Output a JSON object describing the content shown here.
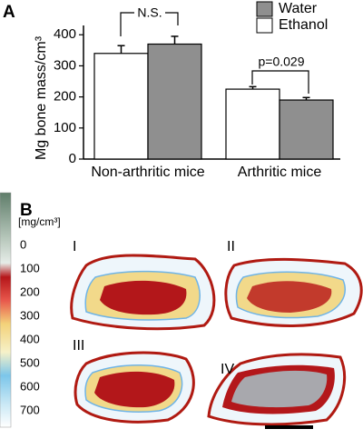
{
  "chart_data": {
    "type": "bar",
    "ylabel": "Mg bone mass/cm³",
    "categories": [
      "Non-arthritic mice",
      "Arthritic mice"
    ],
    "series": [
      {
        "name": "Ethanol",
        "color": "#ffffff",
        "values": [
          340,
          225
        ],
        "errors": [
          25,
          8
        ]
      },
      {
        "name": "Water",
        "color": "#8f8f8f",
        "values": [
          370,
          190
        ],
        "errors": [
          25,
          8
        ]
      }
    ],
    "ylim": [
      0,
      430
    ],
    "yticks": [
      0,
      100,
      200,
      300,
      400
    ],
    "annotations": [
      {
        "text": "N.S."
      },
      {
        "text": "p=0.029"
      }
    ]
  },
  "panel_a_label": "A",
  "panel_b": {
    "label": "B",
    "unit": "[mg/cm³]",
    "colorbar_ticks": [
      0,
      100,
      200,
      300,
      400,
      500,
      600,
      700
    ],
    "images": [
      "I",
      "II",
      "III",
      "IV"
    ]
  }
}
